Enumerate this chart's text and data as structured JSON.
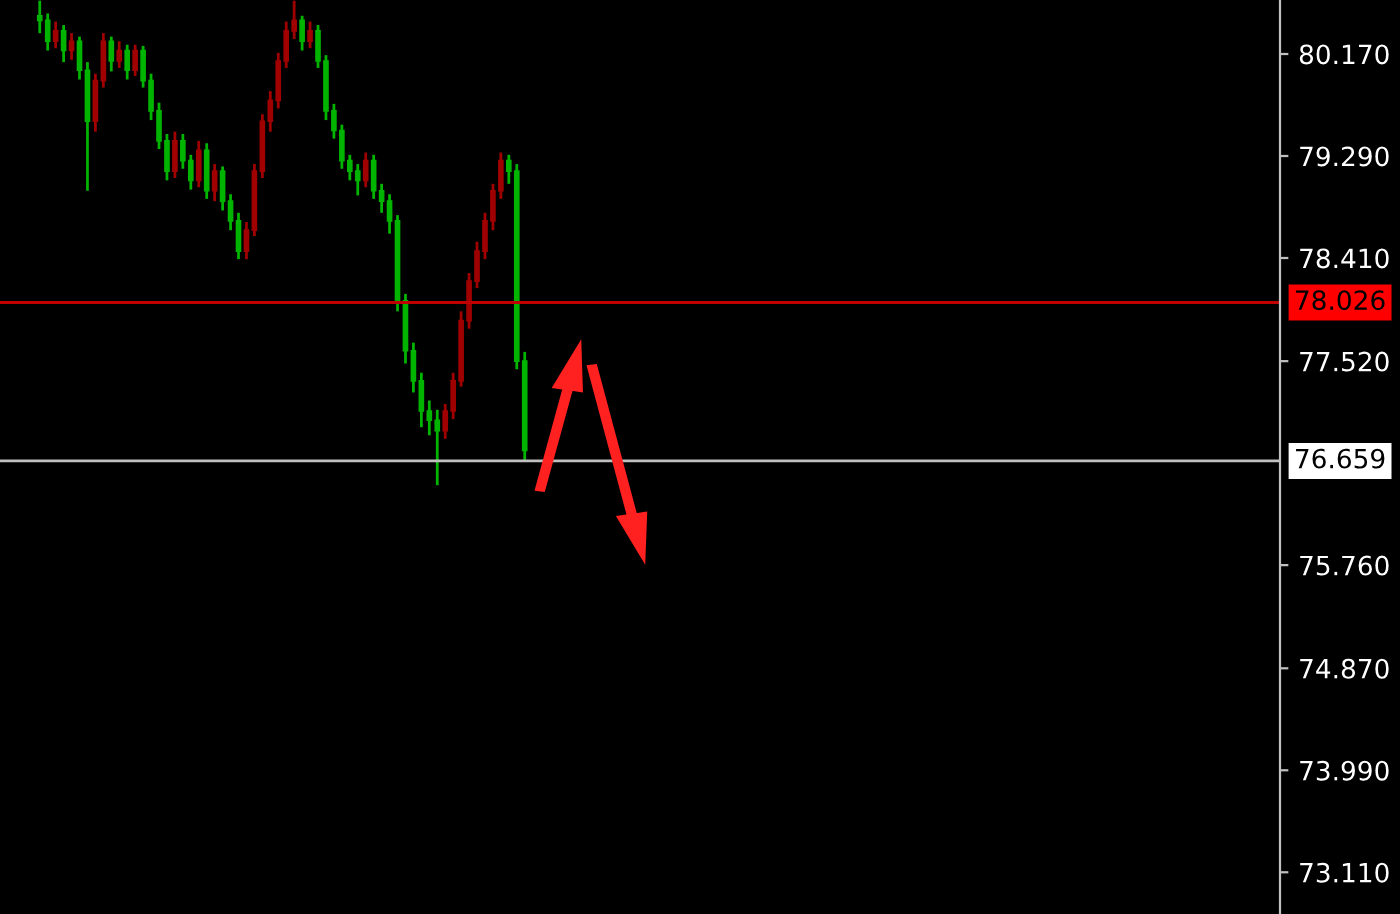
{
  "chart_data": {
    "type": "candlestick",
    "categories": [
      null,
      null,
      null,
      null,
      null,
      null,
      null,
      null,
      null,
      null,
      null,
      null,
      null,
      null,
      null,
      null,
      null,
      null,
      null,
      null,
      null,
      null,
      null,
      null,
      null,
      null,
      null,
      null,
      null,
      null,
      null,
      null,
      null,
      null,
      null,
      null,
      null,
      null,
      null,
      null,
      null,
      null,
      null,
      null,
      null,
      null,
      null,
      null,
      null,
      null,
      null,
      null,
      null,
      null,
      null,
      null,
      null,
      null,
      null,
      null,
      null,
      null
    ],
    "ohlc": [
      [
        80.5,
        80.63,
        80.35,
        80.46
      ],
      [
        80.46,
        80.52,
        80.2,
        80.28
      ],
      [
        80.28,
        80.45,
        80.22,
        80.37
      ],
      [
        80.37,
        80.42,
        80.1,
        80.2
      ],
      [
        80.2,
        80.35,
        80.12,
        80.28
      ],
      [
        80.28,
        80.32,
        79.95,
        80.03
      ],
      [
        80.03,
        80.1,
        78.99,
        79.59
      ],
      [
        79.59,
        80.0,
        79.5,
        79.94
      ],
      [
        79.94,
        80.35,
        79.88,
        80.28
      ],
      [
        80.28,
        80.32,
        80.02,
        80.11
      ],
      [
        80.11,
        80.28,
        80.05,
        80.2
      ],
      [
        80.2,
        80.25,
        79.95,
        80.03
      ],
      [
        80.03,
        80.25,
        79.98,
        80.2
      ],
      [
        80.2,
        80.24,
        79.88,
        79.94
      ],
      [
        79.94,
        80.0,
        79.6,
        79.68
      ],
      [
        79.68,
        79.75,
        79.35,
        79.42
      ],
      [
        79.42,
        79.48,
        79.08,
        79.16
      ],
      [
        79.16,
        79.5,
        79.1,
        79.42
      ],
      [
        79.42,
        79.48,
        79.18,
        79.25
      ],
      [
        79.25,
        79.3,
        79.0,
        79.08
      ],
      [
        79.08,
        79.42,
        79.02,
        79.34
      ],
      [
        79.34,
        79.4,
        78.92,
        78.99
      ],
      [
        78.99,
        79.22,
        78.9,
        79.16
      ],
      [
        79.16,
        79.2,
        78.82,
        78.9
      ],
      [
        78.9,
        78.96,
        78.65,
        78.73
      ],
      [
        78.73,
        78.8,
        78.4,
        78.47
      ],
      [
        78.47,
        78.72,
        78.4,
        78.65
      ],
      [
        78.65,
        79.22,
        78.6,
        79.16
      ],
      [
        79.16,
        79.65,
        79.1,
        79.59
      ],
      [
        79.59,
        79.85,
        79.5,
        79.77
      ],
      [
        79.77,
        80.18,
        79.7,
        80.11
      ],
      [
        80.11,
        80.45,
        80.05,
        80.37
      ],
      [
        80.37,
        80.63,
        80.3,
        80.46
      ],
      [
        80.46,
        80.5,
        80.2,
        80.28
      ],
      [
        80.28,
        80.45,
        80.22,
        80.37
      ],
      [
        80.37,
        80.42,
        80.05,
        80.11
      ],
      [
        80.11,
        80.16,
        79.6,
        79.68
      ],
      [
        79.68,
        79.74,
        79.44,
        79.51
      ],
      [
        79.51,
        79.56,
        79.18,
        79.25
      ],
      [
        79.25,
        79.3,
        79.08,
        79.16
      ],
      [
        79.16,
        79.22,
        78.95,
        79.08
      ],
      [
        79.08,
        79.32,
        79.02,
        79.25
      ],
      [
        79.25,
        79.3,
        78.92,
        78.99
      ],
      [
        78.99,
        79.05,
        78.8,
        78.9
      ],
      [
        78.9,
        78.96,
        78.62,
        78.73
      ],
      [
        78.73,
        78.78,
        77.95,
        78.04
      ],
      [
        78.04,
        78.1,
        77.5,
        77.61
      ],
      [
        77.61,
        77.68,
        77.25,
        77.35
      ],
      [
        77.35,
        77.42,
        76.95,
        77.09
      ],
      [
        77.09,
        77.18,
        76.88,
        77.01
      ],
      [
        77.01,
        77.1,
        76.45,
        76.92
      ],
      [
        76.92,
        77.15,
        76.85,
        77.09
      ],
      [
        77.09,
        77.42,
        77.02,
        77.35
      ],
      [
        77.35,
        77.95,
        77.3,
        77.87
      ],
      [
        77.87,
        78.28,
        77.8,
        78.21
      ],
      [
        78.21,
        78.55,
        78.15,
        78.47
      ],
      [
        78.47,
        78.8,
        78.4,
        78.73
      ],
      [
        78.73,
        79.05,
        78.65,
        78.99
      ],
      [
        78.99,
        79.32,
        78.92,
        79.25
      ],
      [
        79.25,
        79.3,
        79.05,
        79.16
      ],
      [
        79.16,
        79.22,
        77.45,
        77.52
      ],
      [
        77.52,
        77.6,
        76.66,
        76.75
      ]
    ],
    "colors": [
      "#00b400",
      "#00b400",
      "#a00000",
      "#00b400",
      "#a00000",
      "#00b400",
      "#00b400",
      "#a00000",
      "#a00000",
      "#00b400",
      "#a00000",
      "#00b400",
      "#a00000",
      "#00b400",
      "#00b400",
      "#00b400",
      "#00b400",
      "#a00000",
      "#00b400",
      "#00b400",
      "#a00000",
      "#00b400",
      "#a00000",
      "#00b400",
      "#00b400",
      "#00b400",
      "#a00000",
      "#a00000",
      "#a00000",
      "#a00000",
      "#a00000",
      "#a00000",
      "#a00000",
      "#00b400",
      "#a00000",
      "#00b400",
      "#00b400",
      "#00b400",
      "#00b400",
      "#00b400",
      "#00b400",
      "#a00000",
      "#00b400",
      "#00b400",
      "#00b400",
      "#00b400",
      "#00b400",
      "#00b400",
      "#00b400",
      "#00b400",
      "#00b400",
      "#a00000",
      "#a00000",
      "#a00000",
      "#a00000",
      "#a00000",
      "#a00000",
      "#a00000",
      "#a00000",
      "#00b400",
      "#00b400",
      "#00b400"
    ],
    "ylim": [
      72.75,
      80.636
    ],
    "yticks": [
      "80.170",
      "79.290",
      "78.410",
      "77.520",
      "75.760",
      "74.870",
      "73.990",
      "73.110"
    ],
    "ref_lines": [
      {
        "axis": "y",
        "value": 78.026,
        "label": "78.026",
        "color": "#c00000"
      },
      {
        "axis": "y",
        "value": 76.659,
        "label": "76.659",
        "color": "#c0c0c0"
      }
    ],
    "tick_labels": "y",
    "grid": false,
    "legend": false
  }
}
